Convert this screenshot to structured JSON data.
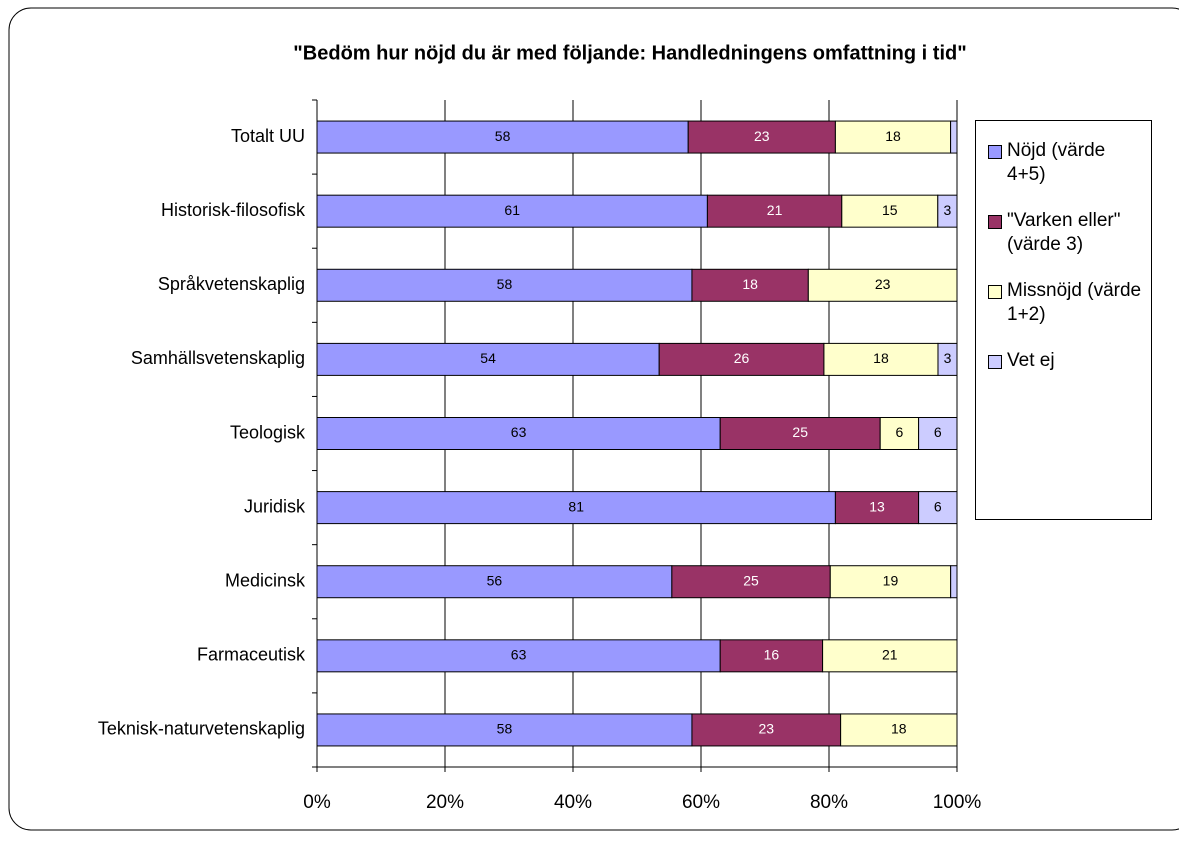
{
  "chart_data": {
    "type": "bar",
    "orientation": "horizontal",
    "stacking": "percent",
    "title": "\"Bedöm hur nöjd du är med följande: Handledningens omfattning i tid\"",
    "categories": [
      "Totalt UU",
      "Historisk-filosofisk",
      "Språkvetenskaplig",
      "Samhällsvetenskaplig",
      "Teologisk",
      "Juridisk",
      "Medicinsk",
      "Farmaceutisk",
      "Teknisk-naturvetenskaplig"
    ],
    "series": [
      {
        "name": "Nöjd (värde 4+5)",
        "color": "#9999ff",
        "label_color": "#000000",
        "values": [
          58,
          61,
          58,
          54,
          63,
          81,
          56,
          63,
          58
        ]
      },
      {
        "name": "\"Varken eller\" (värde 3)",
        "color": "#993366",
        "label_color": "#ffffff",
        "values": [
          23,
          21,
          18,
          26,
          25,
          13,
          25,
          16,
          23
        ]
      },
      {
        "name": "Missnöjd (värde 1+2)",
        "color": "#ffffcc",
        "label_color": "#000000",
        "values": [
          18,
          15,
          23,
          18,
          6,
          0,
          19,
          21,
          18
        ]
      },
      {
        "name": "Vet ej",
        "color": "#ccccff",
        "label_color": "#000000",
        "values": [
          1,
          3,
          0,
          3,
          6,
          6,
          1,
          0,
          0
        ]
      }
    ],
    "xlim": [
      0,
      100
    ],
    "xticks": [
      {
        "value": 0,
        "label": "0%"
      },
      {
        "value": 20,
        "label": "20%"
      },
      {
        "value": 40,
        "label": "40%"
      },
      {
        "value": 60,
        "label": "60%"
      },
      {
        "value": 80,
        "label": "80%"
      },
      {
        "value": 100,
        "label": "100%"
      }
    ],
    "grid": true,
    "legend": "right"
  }
}
